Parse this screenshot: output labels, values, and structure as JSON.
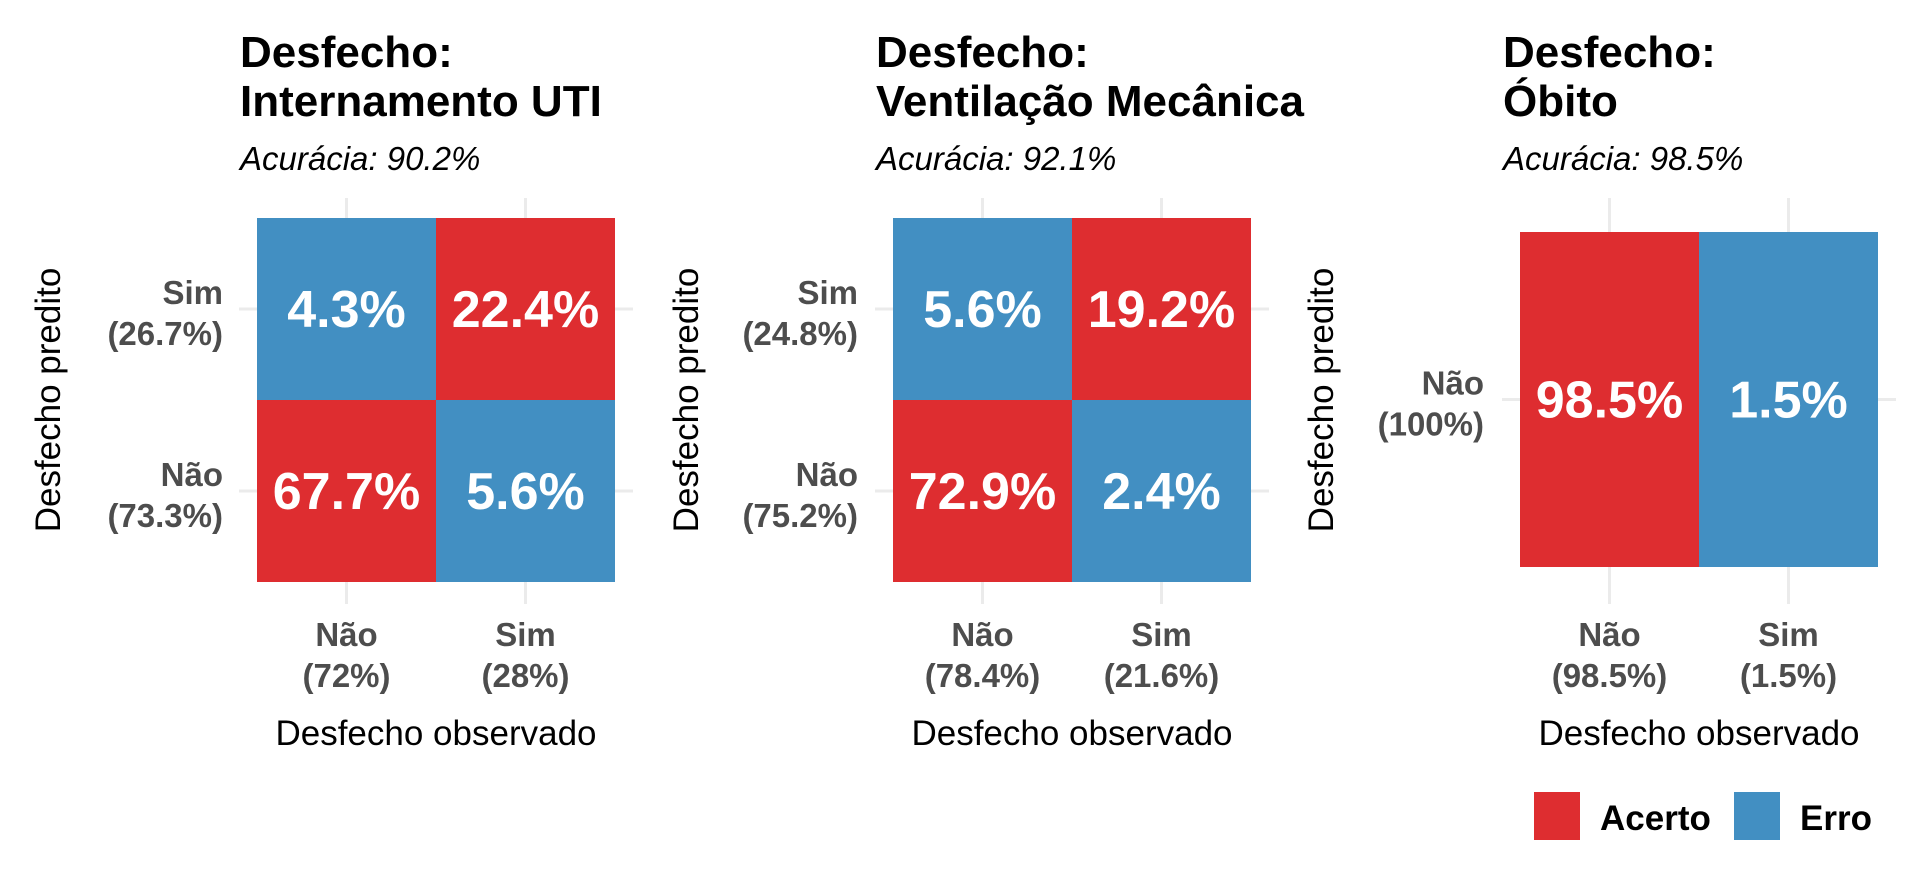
{
  "chart_data": [
    {
      "type": "heatmap",
      "title": [
        "Desfecho:",
        "Internamento UTI"
      ],
      "subtitle": "Acurácia: 90.2%",
      "xlabel": "Desfecho observado",
      "ylabel": "Desfecho predito",
      "x_categories": [
        [
          "Não",
          "(72%)"
        ],
        [
          "Sim",
          "(28%)"
        ]
      ],
      "y_categories": [
        [
          "Sim",
          "(26.7%)"
        ],
        [
          "Não",
          "(73.3%)"
        ]
      ],
      "cells": [
        {
          "row": 0,
          "col": 0,
          "value": 4.3,
          "label": "4.3%",
          "class": "Erro"
        },
        {
          "row": 0,
          "col": 1,
          "value": 22.4,
          "label": "22.4%",
          "class": "Acerto"
        },
        {
          "row": 1,
          "col": 0,
          "value": 67.7,
          "label": "67.7%",
          "class": "Acerto"
        },
        {
          "row": 1,
          "col": 1,
          "value": 5.6,
          "label": "5.6%",
          "class": "Erro"
        }
      ]
    },
    {
      "type": "heatmap",
      "title": [
        "Desfecho:",
        "Ventilação Mecânica"
      ],
      "subtitle": "Acurácia: 92.1%",
      "xlabel": "Desfecho observado",
      "ylabel": "Desfecho predito",
      "x_categories": [
        [
          "Não",
          "(78.4%)"
        ],
        [
          "Sim",
          "(21.6%)"
        ]
      ],
      "y_categories": [
        [
          "Sim",
          "(24.8%)"
        ],
        [
          "Não",
          "(75.2%)"
        ]
      ],
      "cells": [
        {
          "row": 0,
          "col": 0,
          "value": 5.6,
          "label": "5.6%",
          "class": "Erro"
        },
        {
          "row": 0,
          "col": 1,
          "value": 19.2,
          "label": "19.2%",
          "class": "Acerto"
        },
        {
          "row": 1,
          "col": 0,
          "value": 72.9,
          "label": "72.9%",
          "class": "Acerto"
        },
        {
          "row": 1,
          "col": 1,
          "value": 2.4,
          "label": "2.4%",
          "class": "Erro"
        }
      ]
    },
    {
      "type": "heatmap",
      "title": [
        "Desfecho:",
        "Óbito"
      ],
      "subtitle": "Acurácia: 98.5%",
      "xlabel": "Desfecho observado",
      "ylabel": "Desfecho predito",
      "x_categories": [
        [
          "Não",
          "(98.5%)"
        ],
        [
          "Sim",
          "(1.5%)"
        ]
      ],
      "y_categories": [
        [
          "Não",
          "(100%)"
        ]
      ],
      "cells": [
        {
          "row": 0,
          "col": 0,
          "value": 98.5,
          "label": "98.5%",
          "class": "Acerto"
        },
        {
          "row": 0,
          "col": 1,
          "value": 1.5,
          "label": "1.5%",
          "class": "Erro"
        }
      ]
    }
  ],
  "legend": {
    "position": "bottom-right",
    "items": [
      {
        "label": "Acerto",
        "color": "#de2d30"
      },
      {
        "label": "Erro",
        "color": "#428fc2"
      }
    ]
  }
}
